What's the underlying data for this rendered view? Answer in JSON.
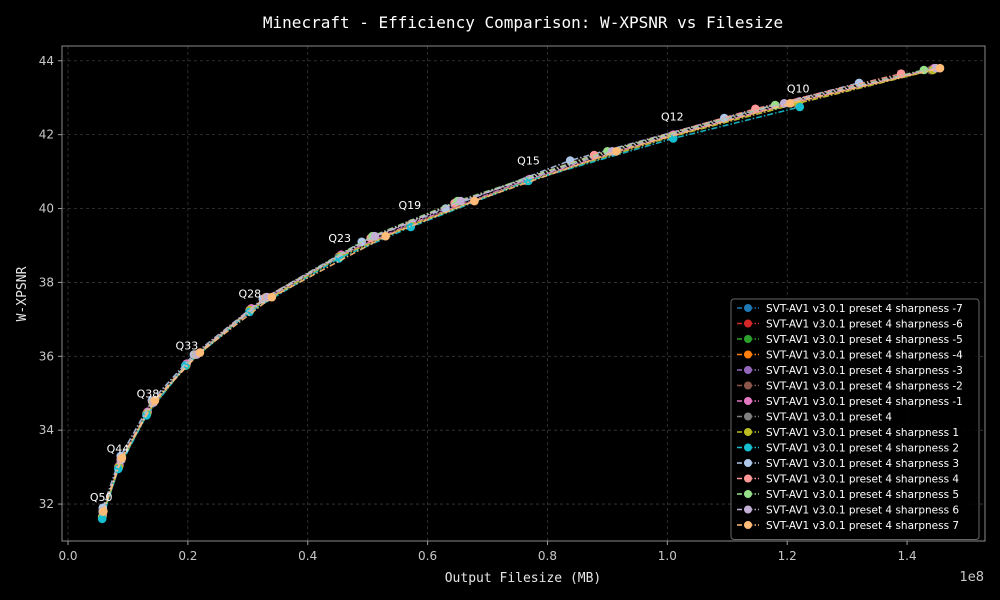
{
  "chart_data": {
    "type": "line",
    "title": "Minecraft - Efficiency Comparison: W-XPSNR vs Filesize",
    "xlabel": "Output Filesize (MB)",
    "ylabel": "W-XPSNR",
    "x_scale_label": "1e8",
    "xlim": [
      -0.01,
      1.53
    ],
    "ylim": [
      31.0,
      44.4
    ],
    "xticks": [
      0.0,
      0.2,
      0.4,
      0.6,
      0.8,
      1.0,
      1.2,
      1.4
    ],
    "xtick_labels": [
      "0.0",
      "0.2",
      "0.4",
      "0.6",
      "0.8",
      "1.0",
      "1.2",
      "1.4"
    ],
    "yticks": [
      32,
      34,
      36,
      38,
      40,
      42,
      44
    ],
    "ytick_labels": [
      "32",
      "34",
      "36",
      "38",
      "40",
      "42",
      "44"
    ],
    "grid": true,
    "legend_position": "lower-right",
    "annotations": [
      {
        "text": "Q50",
        "x": 0.057,
        "y": 31.9
      },
      {
        "text": "Q44",
        "x": 0.085,
        "y": 33.2
      },
      {
        "text": "Q38",
        "x": 0.135,
        "y": 34.7
      },
      {
        "text": "Q33",
        "x": 0.2,
        "y": 36.0
      },
      {
        "text": "Q28",
        "x": 0.305,
        "y": 37.4
      },
      {
        "text": "Q23",
        "x": 0.455,
        "y": 38.9
      },
      {
        "text": "Q19",
        "x": 0.572,
        "y": 39.8
      },
      {
        "text": "Q15",
        "x": 0.77,
        "y": 41.0
      },
      {
        "text": "Q12",
        "x": 1.01,
        "y": 42.2
      },
      {
        "text": "Q10",
        "x": 1.22,
        "y": 42.95
      }
    ],
    "series": [
      {
        "name": "SVT-AV1 v3.0.1 preset 4 sharpness -7",
        "color": "#1f77b4",
        "dash": "dashdot",
        "x": [
          0.057,
          0.084,
          0.131,
          0.196,
          0.303,
          0.452,
          0.57,
          0.765,
          1.005,
          1.215,
          1.44
        ],
        "y": [
          31.65,
          33.0,
          34.45,
          35.75,
          37.25,
          38.7,
          39.55,
          40.75,
          41.95,
          42.85,
          43.75
        ]
      },
      {
        "name": "SVT-AV1 v3.0.1 preset 4 sharpness -6",
        "color": "#d62728",
        "dash": "dashdot",
        "x": [
          0.057,
          0.084,
          0.131,
          0.196,
          0.303,
          0.452,
          0.57,
          0.765,
          1.005,
          1.215,
          1.44
        ],
        "y": [
          31.65,
          33.0,
          34.45,
          35.75,
          37.25,
          38.7,
          39.55,
          40.75,
          41.95,
          42.85,
          43.75
        ]
      },
      {
        "name": "SVT-AV1 v3.0.1 preset 4 sharpness -5",
        "color": "#2ca02c",
        "dash": "dashdot",
        "x": [
          0.057,
          0.084,
          0.131,
          0.196,
          0.303,
          0.452,
          0.57,
          0.765,
          1.005,
          1.215,
          1.44
        ],
        "y": [
          31.65,
          33.0,
          34.45,
          35.75,
          37.25,
          38.7,
          39.55,
          40.75,
          41.95,
          42.85,
          43.75
        ]
      },
      {
        "name": "SVT-AV1 v3.0.1 preset 4 sharpness -4",
        "color": "#ff7f0e",
        "dash": "dashdot",
        "x": [
          0.057,
          0.084,
          0.131,
          0.196,
          0.303,
          0.452,
          0.57,
          0.765,
          1.005,
          1.215,
          1.44
        ],
        "y": [
          31.65,
          33.0,
          34.45,
          35.75,
          37.25,
          38.7,
          39.55,
          40.75,
          41.95,
          42.85,
          43.75
        ]
      },
      {
        "name": "SVT-AV1 v3.0.1 preset 4 sharpness -3",
        "color": "#9467bd",
        "dash": "dashdot",
        "x": [
          0.057,
          0.084,
          0.131,
          0.196,
          0.303,
          0.452,
          0.57,
          0.765,
          1.005,
          1.215,
          1.44
        ],
        "y": [
          31.65,
          33.0,
          34.45,
          35.75,
          37.25,
          38.7,
          39.55,
          40.75,
          41.95,
          42.85,
          43.75
        ]
      },
      {
        "name": "SVT-AV1 v3.0.1 preset 4 sharpness -2",
        "color": "#8c564b",
        "dash": "dashdot",
        "x": [
          0.057,
          0.084,
          0.131,
          0.196,
          0.303,
          0.452,
          0.57,
          0.768,
          1.005,
          1.215,
          1.44
        ],
        "y": [
          31.65,
          33.0,
          34.45,
          35.75,
          37.25,
          38.7,
          39.55,
          40.75,
          41.95,
          42.85,
          43.75
        ]
      },
      {
        "name": "SVT-AV1 v3.0.1 preset 4 sharpness -1",
        "color": "#e377c2",
        "dash": "dashdot",
        "x": [
          0.058,
          0.086,
          0.133,
          0.198,
          0.306,
          0.456,
          0.574,
          0.77,
          1.01,
          1.22,
          1.445
        ],
        "y": [
          31.7,
          33.05,
          34.5,
          35.8,
          37.3,
          38.75,
          39.6,
          40.8,
          42.0,
          42.9,
          43.8
        ]
      },
      {
        "name": "SVT-AV1 v3.0.1 preset 4",
        "color": "#7f7f7f",
        "dash": "dashdot",
        "x": [
          0.057,
          0.085,
          0.132,
          0.197,
          0.304,
          0.454,
          0.572,
          0.768,
          1.007,
          1.218,
          1.442
        ],
        "y": [
          31.65,
          33.0,
          34.45,
          35.75,
          37.25,
          38.7,
          39.55,
          40.75,
          41.95,
          42.85,
          43.75
        ]
      },
      {
        "name": "SVT-AV1 v3.0.1 preset 4 sharpness 1",
        "color": "#bcbd22",
        "dash": "dashdot",
        "x": [
          0.057,
          0.085,
          0.132,
          0.197,
          0.304,
          0.454,
          0.572,
          0.768,
          1.008,
          1.218,
          1.443
        ],
        "y": [
          31.65,
          33.0,
          34.45,
          35.75,
          37.25,
          38.7,
          39.55,
          40.75,
          41.95,
          42.85,
          43.75
        ]
      },
      {
        "name": "SVT-AV1 v3.0.1 preset 4 sharpness 2",
        "color": "#17becf",
        "dash": "dashdot",
        "x": [
          0.057,
          0.084,
          0.131,
          0.196,
          0.303,
          0.452,
          0.572,
          0.768,
          1.01,
          1.221
        ],
        "y": [
          31.6,
          32.95,
          34.4,
          35.75,
          37.2,
          38.65,
          39.5,
          40.75,
          41.9,
          42.75
        ]
      },
      {
        "name": "SVT-AV1 v3.0.1 preset 4 sharpness 3",
        "color": "#aec7e8",
        "dash": "dashdot",
        "x": [
          0.058,
          0.088,
          0.14,
          0.21,
          0.325,
          0.49,
          0.63,
          0.838,
          1.095,
          1.32
        ],
        "y": [
          31.9,
          33.3,
          34.8,
          36.05,
          37.55,
          39.1,
          40.0,
          41.3,
          42.45,
          43.4
        ]
      },
      {
        "name": "SVT-AV1 v3.0.1 preset 4 sharpness 4",
        "color": "#ff9896",
        "dash": "dashdot",
        "x": [
          0.058,
          0.088,
          0.141,
          0.213,
          0.33,
          0.505,
          0.645,
          0.878,
          1.147,
          1.39
        ],
        "y": [
          31.8,
          33.2,
          34.75,
          36.05,
          37.6,
          39.2,
          40.15,
          41.45,
          42.7,
          43.65
        ]
      },
      {
        "name": "SVT-AV1 v3.0.1 preset 4 sharpness 5",
        "color": "#98df8a",
        "dash": "dashdot",
        "x": [
          0.058,
          0.089,
          0.142,
          0.214,
          0.332,
          0.508,
          0.65,
          0.9,
          1.18,
          1.428
        ],
        "y": [
          31.8,
          33.2,
          34.75,
          36.05,
          37.6,
          39.25,
          40.2,
          41.55,
          42.8,
          43.75
        ]
      },
      {
        "name": "SVT-AV1 v3.0.1 preset 4 sharpness 6",
        "color": "#c5b0d5",
        "dash": "dashdot",
        "x": [
          0.058,
          0.089,
          0.143,
          0.215,
          0.333,
          0.512,
          0.655,
          0.908,
          1.195,
          1.448
        ],
        "y": [
          31.8,
          33.2,
          34.75,
          36.05,
          37.6,
          39.25,
          40.2,
          41.55,
          42.85,
          43.8
        ]
      },
      {
        "name": "SVT-AV1 v3.0.1 preset 4 sharpness 7",
        "color": "#ffbb78",
        "dash": "dashdot",
        "x": [
          0.059,
          0.09,
          0.145,
          0.22,
          0.34,
          0.53,
          0.678,
          0.915,
          1.205,
          1.455
        ],
        "y": [
          31.8,
          33.25,
          34.8,
          36.1,
          37.6,
          39.25,
          40.2,
          41.55,
          42.85,
          43.8
        ]
      }
    ]
  }
}
